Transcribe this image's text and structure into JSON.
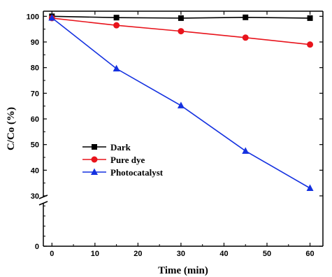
{
  "chart_data": {
    "type": "line",
    "xlabel": "Time (min)",
    "ylabel": "C/Co (%)",
    "x_ticks": [
      0,
      10,
      20,
      30,
      40,
      50,
      60
    ],
    "y_ticks": [
      0,
      30,
      40,
      50,
      60,
      70,
      80,
      90,
      100
    ],
    "xlim": [
      -2,
      63
    ],
    "ylim": [
      0,
      102
    ],
    "y_axis_break": [
      0,
      30
    ],
    "grid": false,
    "legend_position": "lower-left",
    "series": [
      {
        "name": "Dark",
        "color": "#000000",
        "marker": "square",
        "x": [
          0,
          15,
          30,
          45,
          60
        ],
        "y": [
          100,
          99.5,
          99.3,
          99.6,
          99.3
        ]
      },
      {
        "name": "Pure dye",
        "color": "#e8141c",
        "marker": "circle",
        "x": [
          0,
          15,
          30,
          45,
          60
        ],
        "y": [
          99.3,
          96.5,
          94.2,
          91.7,
          89.0
        ]
      },
      {
        "name": "Photocatalyst",
        "color": "#1431e0",
        "marker": "triangle",
        "x": [
          0,
          15,
          30,
          45,
          60
        ],
        "y": [
          99.4,
          79.6,
          65.2,
          47.5,
          33.0
        ]
      }
    ]
  }
}
